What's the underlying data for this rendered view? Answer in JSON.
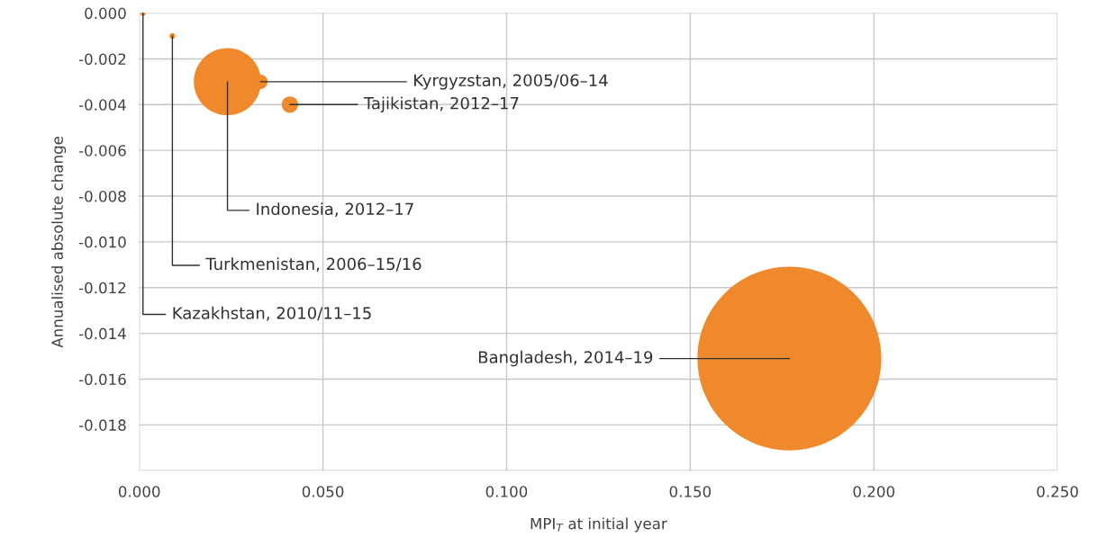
{
  "chart_data": {
    "type": "bubble",
    "xlabel": "MPI$_{T}$ at initial year",
    "ylabel": "Annualised absolute change",
    "series": [
      {
        "color": "#f0892b",
        "x": [
          0.001,
          0.009,
          0.024,
          0.033,
          0.041,
          0.177
        ],
        "values": [
          0.0,
          -0.001,
          -0.003,
          -0.003,
          -0.004,
          -0.0151
        ],
        "sizes": [
          0.001,
          0.001,
          0.134,
          0.006,
          0.008,
          1
        ]
      }
    ],
    "annotations": [
      {
        "text": "Kazakhstan, 2010/11–15",
        "x": 0.001,
        "y": 0.0
      },
      {
        "text": "Turkmenistan, 2006–15/16",
        "x": 0.009,
        "y": -0.001
      },
      {
        "text": "Indonesia, 2012–17",
        "x": 0.024,
        "y": -0.003
      },
      {
        "text": "Kyrgyzstan, 2005/06–14",
        "x": 0.033,
        "y": -0.003
      },
      {
        "text": "Tajikistan, 2012–17",
        "x": 0.041,
        "y": -0.004
      },
      {
        "text": "Bangladesh, 2014–19",
        "x": 0.177,
        "y": -0.0151
      }
    ],
    "xlim": [
      0,
      0.25
    ],
    "xticks": [
      {
        "value": 0,
        "label": "0.000"
      },
      {
        "value": 0.05,
        "label": "0.050"
      },
      {
        "value": 0.1,
        "label": "0.100"
      },
      {
        "value": 0.15,
        "label": "0.150"
      },
      {
        "value": 0.2,
        "label": "0.200"
      },
      {
        "value": 0.25,
        "label": "0.250"
      }
    ],
    "ylim": [
      -0.02,
      0
    ],
    "yticks": [
      {
        "value": 0,
        "label": "0.000"
      },
      {
        "value": -0.002,
        "label": "-0.002"
      },
      {
        "value": -0.004,
        "label": "-0.004"
      },
      {
        "value": -0.006,
        "label": "-0.006"
      },
      {
        "value": -0.008,
        "label": "-0.008"
      },
      {
        "value": -0.01,
        "label": "-0.010"
      },
      {
        "value": -0.012,
        "label": "-0.012"
      },
      {
        "value": -0.014,
        "label": "-0.014"
      },
      {
        "value": -0.016,
        "label": "-0.016"
      },
      {
        "value": -0.018,
        "label": "-0.018"
      },
      {
        "value": -0.02,
        "label": null
      }
    ],
    "grid": true,
    "legend": false
  }
}
